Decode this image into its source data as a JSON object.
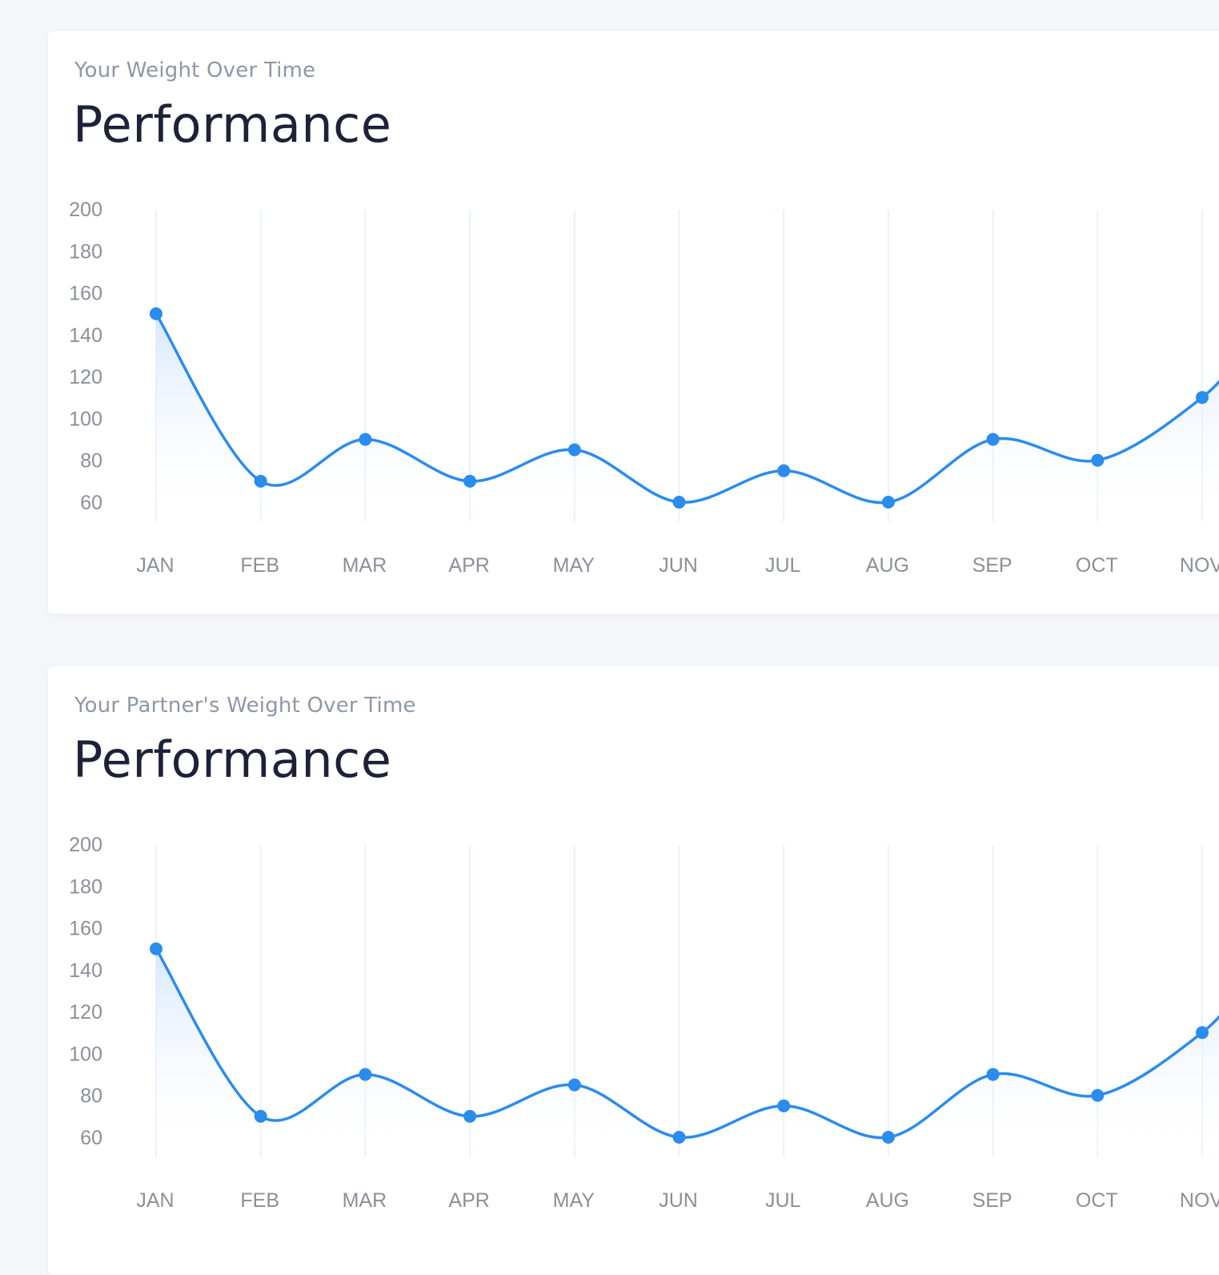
{
  "cards": [
    {
      "subtitle": "Your Weight Over Time",
      "title": "Performance"
    },
    {
      "subtitle": "Your Partner's Weight Over Time",
      "title": "Performance"
    }
  ],
  "colors": {
    "line": "#2a8cec",
    "grid": "#e3eefb",
    "fill_top": "#cfe3fb",
    "tick": "#8b8f98"
  },
  "chart_data": [
    {
      "type": "line",
      "title": "Performance",
      "subtitle": "Your Weight Over Time",
      "categories": [
        "JAN",
        "FEB",
        "MAR",
        "APR",
        "MAY",
        "JUN",
        "JUL",
        "AUG",
        "SEP",
        "OCT",
        "NOV"
      ],
      "series": [
        {
          "values": [
            150,
            70,
            90,
            70,
            85,
            60,
            75,
            60,
            90,
            80,
            110
          ]
        }
      ],
      "yticks": [
        200,
        180,
        160,
        140,
        120,
        100,
        80,
        60
      ],
      "ylim": [
        60,
        200
      ],
      "xlabel": "",
      "ylabel": "",
      "grid": "vertical",
      "smooth": true,
      "area_fill": true
    },
    {
      "type": "line",
      "title": "Performance",
      "subtitle": "Your Partner's Weight Over Time",
      "categories": [
        "JAN",
        "FEB",
        "MAR",
        "APR",
        "MAY",
        "JUN",
        "JUL",
        "AUG",
        "SEP",
        "OCT",
        "NOV"
      ],
      "series": [
        {
          "values": [
            150,
            70,
            90,
            70,
            85,
            60,
            75,
            60,
            90,
            80,
            110
          ]
        }
      ],
      "yticks": [
        200,
        180,
        160,
        140,
        120,
        100,
        80,
        60
      ],
      "ylim": [
        60,
        200
      ],
      "xlabel": "",
      "ylabel": "",
      "grid": "vertical",
      "smooth": true,
      "area_fill": true
    }
  ]
}
